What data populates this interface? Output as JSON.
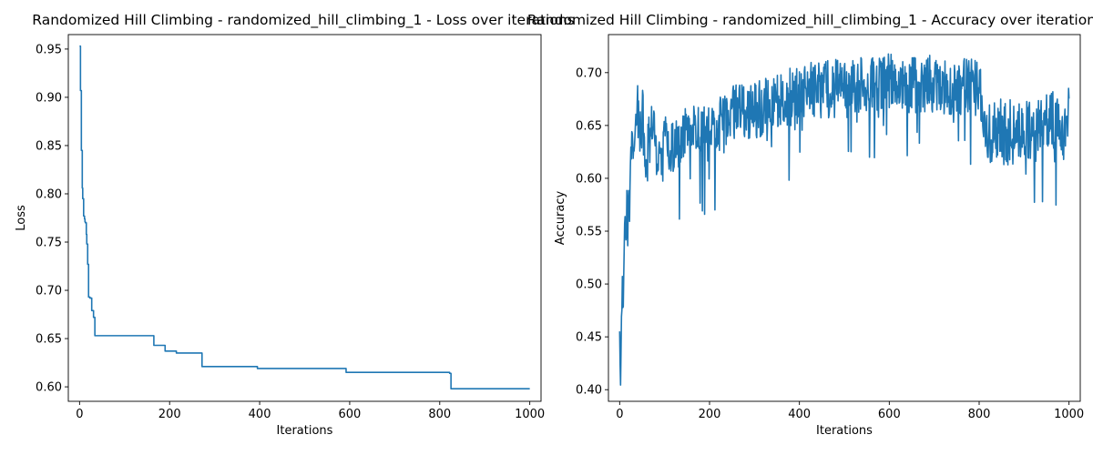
{
  "chart_data": [
    {
      "type": "line",
      "title": "Randomized Hill Climbing - randomized_hill_climbing_1 - Loss over iterations",
      "xlabel": "Iterations",
      "ylabel": "Loss",
      "xlim": [
        -25,
        1025
      ],
      "ylim": [
        0.585,
        0.965
      ],
      "xticks": [
        0,
        200,
        400,
        600,
        800,
        1000
      ],
      "yticks": [
        0.6,
        0.65,
        0.7,
        0.75,
        0.8,
        0.85,
        0.9,
        0.95
      ],
      "grid": false,
      "color": "#1f77b4",
      "series": [
        {
          "step": true,
          "x": [
            0,
            2,
            4,
            6,
            7,
            9,
            11,
            12,
            13,
            15,
            16,
            18,
            20,
            23,
            27,
            31,
            34,
            165,
            190,
            215,
            272,
            395,
            592,
            822,
            825,
            1000
          ],
          "values": [
            0.953,
            0.907,
            0.845,
            0.806,
            0.795,
            0.777,
            0.774,
            0.771,
            0.77,
            0.758,
            0.748,
            0.727,
            0.693,
            0.692,
            0.679,
            0.672,
            0.653,
            0.643,
            0.637,
            0.635,
            0.621,
            0.619,
            0.615,
            0.614,
            0.598,
            0.598
          ]
        }
      ]
    },
    {
      "type": "line",
      "title": "Randomized Hill Climbing - randomized_hill_climbing_1 - Accuracy over iterations",
      "xlabel": "Iterations",
      "ylabel": "Accuracy",
      "xlim": [
        -25,
        1025
      ],
      "ylim": [
        0.389,
        0.736
      ],
      "xticks": [
        0,
        200,
        400,
        600,
        800,
        1000
      ],
      "yticks": [
        0.4,
        0.45,
        0.5,
        0.55,
        0.6,
        0.65,
        0.7
      ],
      "grid": false,
      "color": "#1f77b4",
      "series": [
        {
          "x": [
            0,
            2,
            4,
            6,
            8,
            10,
            12,
            14,
            16,
            18,
            20,
            22,
            25,
            28,
            31,
            35,
            40,
            45,
            50,
            60,
            75,
            90,
            100,
            120,
            150,
            180,
            200,
            250,
            300,
            350,
            400,
            450,
            500,
            550,
            600,
            650,
            700,
            750,
            800,
            820,
            850,
            880,
            900,
            940,
            970,
            990,
            1000
          ],
          "values": [
            0.45,
            0.406,
            0.47,
            0.503,
            0.472,
            0.54,
            0.575,
            0.53,
            0.58,
            0.545,
            0.6,
            0.568,
            0.62,
            0.64,
            0.625,
            0.65,
            0.67,
            0.64,
            0.66,
            0.62,
            0.65,
            0.6,
            0.64,
            0.63,
            0.65,
            0.64,
            0.645,
            0.66,
            0.665,
            0.672,
            0.68,
            0.684,
            0.685,
            0.688,
            0.69,
            0.688,
            0.69,
            0.688,
            0.685,
            0.64,
            0.64,
            0.65,
            0.645,
            0.65,
            0.655,
            0.64,
            0.66
          ]
        }
      ]
    }
  ]
}
